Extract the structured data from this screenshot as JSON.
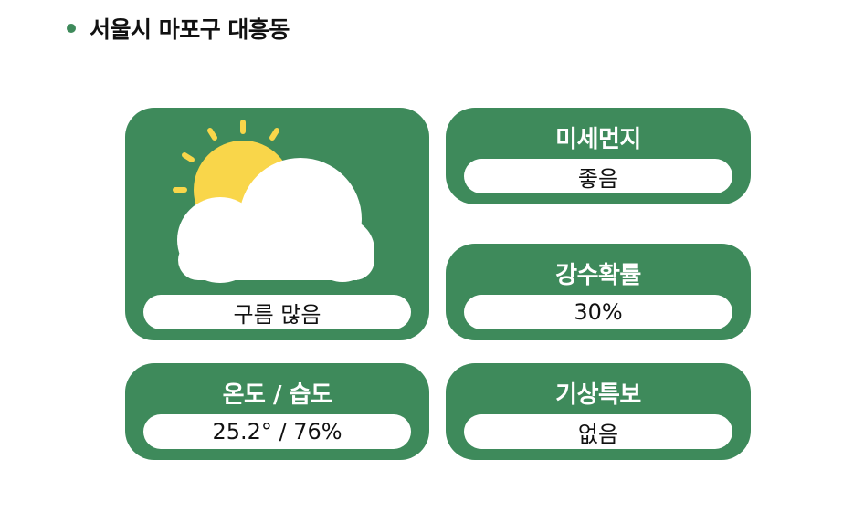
{
  "location": {
    "name": "서울시 마포구 대흥동"
  },
  "weather": {
    "icon": "partly-cloudy-icon",
    "condition": "구름 많음"
  },
  "temperature_humidity": {
    "title": "온도 / 습도",
    "value": "25.2° / 76%"
  },
  "fine_dust": {
    "title": "미세먼지",
    "value": "좋음"
  },
  "precipitation": {
    "title": "강수확률",
    "value": "30%"
  },
  "weather_alert": {
    "title": "기상특보",
    "value": "없음"
  },
  "colors": {
    "card_green": "#3e8a5b",
    "sun_yellow": "#f9d64a",
    "cloud_white": "#ffffff"
  }
}
